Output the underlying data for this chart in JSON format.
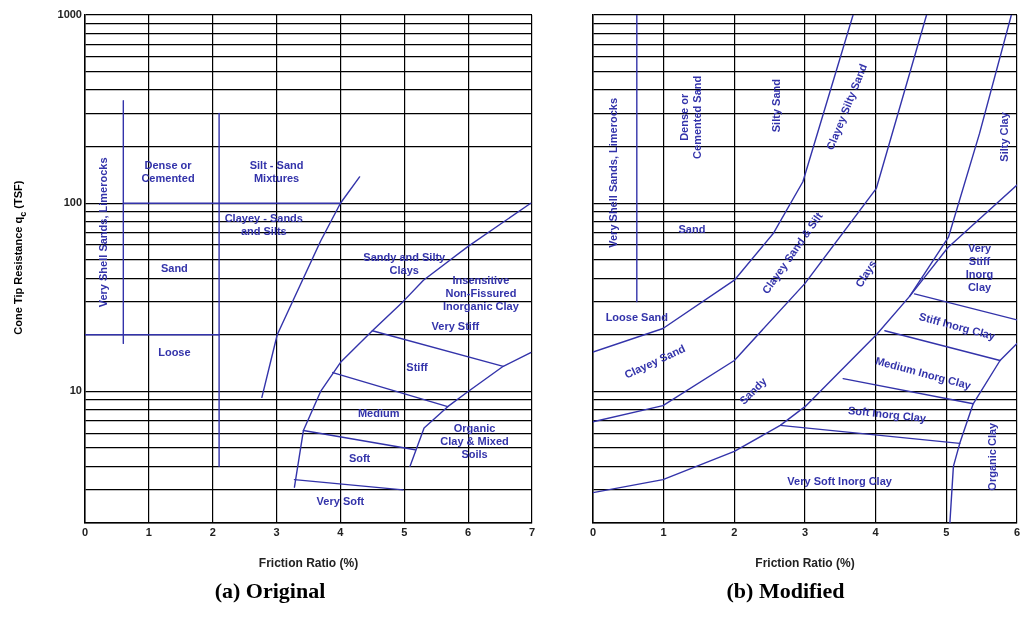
{
  "chart_data": [
    {
      "type": "line",
      "title": "(a) Original",
      "xlabel": "Friction Ratio (%)",
      "ylabel": "Cone Tip Resistance q$_{c}$ (TSF)",
      "log": "y",
      "grid": true,
      "marker": "none",
      "line_style": "solid",
      "xlim": [
        0,
        7
      ],
      "xticks": [
        0,
        1,
        2,
        3,
        4,
        5,
        6,
        7
      ],
      "ylim": [
        2,
        1000
      ],
      "yticks": [
        {
          "value": 2,
          "label": null
        },
        {
          "value": 3,
          "label": null
        },
        {
          "value": 4,
          "label": null
        },
        {
          "value": 5,
          "label": null
        },
        {
          "value": 6,
          "label": null
        },
        {
          "value": 7,
          "label": null
        },
        {
          "value": 8,
          "label": null
        },
        {
          "value": 9,
          "label": null
        },
        10,
        {
          "value": 20,
          "label": null
        },
        {
          "value": 30,
          "label": null
        },
        {
          "value": 40,
          "label": null
        },
        {
          "value": 50,
          "label": null
        },
        {
          "value": 60,
          "label": null
        },
        {
          "value": 70,
          "label": null
        },
        {
          "value": 80,
          "label": null
        },
        {
          "value": 90,
          "label": null
        },
        100,
        {
          "value": 200,
          "label": null
        },
        {
          "value": 300,
          "label": null
        },
        {
          "value": 400,
          "label": null
        },
        {
          "value": 500,
          "label": null
        },
        {
          "value": 600,
          "label": null
        },
        {
          "value": 700,
          "label": null
        },
        {
          "value": 800,
          "label": null
        },
        {
          "value": 900,
          "label": null
        },
        1000
      ],
      "series": [
        {
          "color": "#3333aa",
          "x": [
            0.6,
            0.6
          ],
          "values": [
            18,
            350
          ]
        },
        {
          "color": "#3333aa",
          "x": [
            0.6,
            4.0
          ],
          "values": [
            100,
            100
          ]
        },
        {
          "color": "#3333aa",
          "x": [
            0,
            2.1
          ],
          "values": [
            20,
            20
          ]
        },
        {
          "color": "#3333aa",
          "x": [
            2.1,
            2.1
          ],
          "values": [
            4,
            300
          ]
        },
        {
          "color": "#3333aa",
          "x": [
            2.77,
            3.01,
            3.26,
            3.69,
            4.0,
            4.3
          ],
          "values": [
            9.3,
            20,
            30.5,
            63,
            100,
            138
          ]
        },
        {
          "color": "#3333aa",
          "x": [
            3.28,
            3.42,
            3.69,
            4.01,
            4.5,
            4.98,
            5.3,
            6.0,
            6.98
          ],
          "values": [
            3.1,
            6.2,
            10,
            14.4,
            21,
            30,
            39,
            59,
            100
          ]
        },
        {
          "color": "#3333aa",
          "x": [
            5.09,
            5.31,
            5.68,
            6.0,
            6.55,
            6.98
          ],
          "values": [
            4.0,
            6.4,
            8.3,
            10,
            13.6,
            16.1
          ]
        },
        {
          "color": "#3333aa",
          "x": [
            4.5,
            6.55
          ],
          "values": [
            21,
            13.6
          ]
        },
        {
          "color": "#3333aa",
          "x": [
            3.88,
            5.68
          ],
          "values": [
            12.6,
            8.3
          ]
        },
        {
          "color": "#3333aa",
          "x": [
            3.42,
            5.17
          ],
          "values": [
            6.2,
            4.9
          ]
        },
        {
          "color": "#3333aa",
          "x": [
            3.28,
            4.98
          ],
          "values": [
            3.4,
            3.0
          ]
        }
      ],
      "annotations": [
        "Very Shell Sands, Limerocks",
        "Dense or\nCemented",
        "Silt - Sand\nMixtures",
        "Clayey - Sands\nand Silts",
        "Sand",
        "Sandy and Silty\nClays",
        "Insensitive\nNon-Fissured\nInorganic Clay",
        "Very Stiff",
        "Loose",
        "Stiff",
        "Medium",
        "Organic\nClay & Mixed\nSoils",
        "Soft",
        "Very Soft"
      ]
    },
    {
      "type": "line",
      "title": "(b) Modified",
      "xlabel": "Friction Ratio (%)",
      "log": "y",
      "grid": true,
      "marker": "none",
      "line_style": "solid",
      "tick_labels": "x",
      "xlim": [
        0,
        6
      ],
      "xticks": [
        0,
        1,
        2,
        3,
        4,
        5,
        6
      ],
      "ylim": [
        2,
        1000
      ],
      "yticks": [
        {
          "value": 2,
          "label": null
        },
        {
          "value": 3,
          "label": null
        },
        {
          "value": 4,
          "label": null
        },
        {
          "value": 5,
          "label": null
        },
        {
          "value": 6,
          "label": null
        },
        {
          "value": 7,
          "label": null
        },
        {
          "value": 8,
          "label": null
        },
        {
          "value": 9,
          "label": null
        },
        {
          "value": 10,
          "label": null
        },
        {
          "value": 20,
          "label": null
        },
        {
          "value": 30,
          "label": null
        },
        {
          "value": 40,
          "label": null
        },
        {
          "value": 50,
          "label": null
        },
        {
          "value": 60,
          "label": null
        },
        {
          "value": 70,
          "label": null
        },
        {
          "value": 80,
          "label": null
        },
        {
          "value": 90,
          "label": null
        },
        {
          "value": 100,
          "label": null
        },
        {
          "value": 200,
          "label": null
        },
        {
          "value": 300,
          "label": null
        },
        {
          "value": 400,
          "label": null
        },
        {
          "value": 500,
          "label": null
        },
        {
          "value": 600,
          "label": null
        },
        {
          "value": 700,
          "label": null
        },
        {
          "value": 800,
          "label": null
        },
        {
          "value": 900,
          "label": null
        },
        {
          "value": 1000,
          "label": null
        }
      ],
      "series": [
        {
          "color": "#3333aa",
          "x": [
            0.62,
            0.62
          ],
          "values": [
            30,
            1000
          ]
        },
        {
          "color": "#3333aa",
          "x": [
            0,
            0.99,
            2.0,
            2.55,
            2.97,
            3.68
          ],
          "values": [
            16.2,
            21.6,
            39,
            69,
            130,
            1000
          ]
        },
        {
          "color": "#3333aa",
          "x": [
            0,
            0.99,
            2.0,
            3.0,
            4.01,
            4.72
          ],
          "values": [
            6.9,
            8.4,
            14.6,
            37.5,
            120,
            1000
          ]
        },
        {
          "color": "#3333aa",
          "x": [
            0,
            0.99,
            2.0,
            2.65,
            3.0,
            4.01,
            4.48,
            5.03,
            5.47,
            5.92
          ],
          "values": [
            2.9,
            3.4,
            4.8,
            6.6,
            8.3,
            20,
            32,
            66,
            235,
            1000
          ]
        },
        {
          "color": "#3333aa",
          "x": [
            4.48,
            5.02,
            6.0
          ],
          "values": [
            32,
            58,
            125
          ]
        },
        {
          "color": "#3333aa",
          "x": [
            5.05,
            5.1,
            5.19,
            5.38,
            5.76,
            6.0
          ],
          "values": [
            2,
            4,
            5.3,
            8.6,
            14.6,
            18
          ]
        },
        {
          "color": "#3333aa",
          "x": [
            4.55,
            6.0
          ],
          "values": [
            33,
            24
          ]
        },
        {
          "color": "#3333aa",
          "x": [
            4.13,
            5.76
          ],
          "values": [
            21,
            14.6
          ]
        },
        {
          "color": "#3333aa",
          "x": [
            3.54,
            5.38
          ],
          "values": [
            11.7,
            8.6
          ]
        },
        {
          "color": "#3333aa",
          "x": [
            2.65,
            5.19
          ],
          "values": [
            6.6,
            5.3
          ]
        }
      ],
      "annotations": [
        "Very Shell Sands, Limerocks",
        "Dense or\nCemented Sand",
        "Silty Sand",
        "Clayey Silty Sand",
        "Silty Clay",
        "Sand",
        "Clayey Sand & Silt",
        "Clays",
        "Very\nStiff\nInorg\nClay",
        "Loose Sand",
        "Clayey Sand",
        "Sandy",
        "Stiff Inorg Clay",
        "Medium Inorg Clay",
        "Soft Inorg Clay",
        "Very Soft Inorg Clay",
        "Organic Clay"
      ]
    }
  ]
}
